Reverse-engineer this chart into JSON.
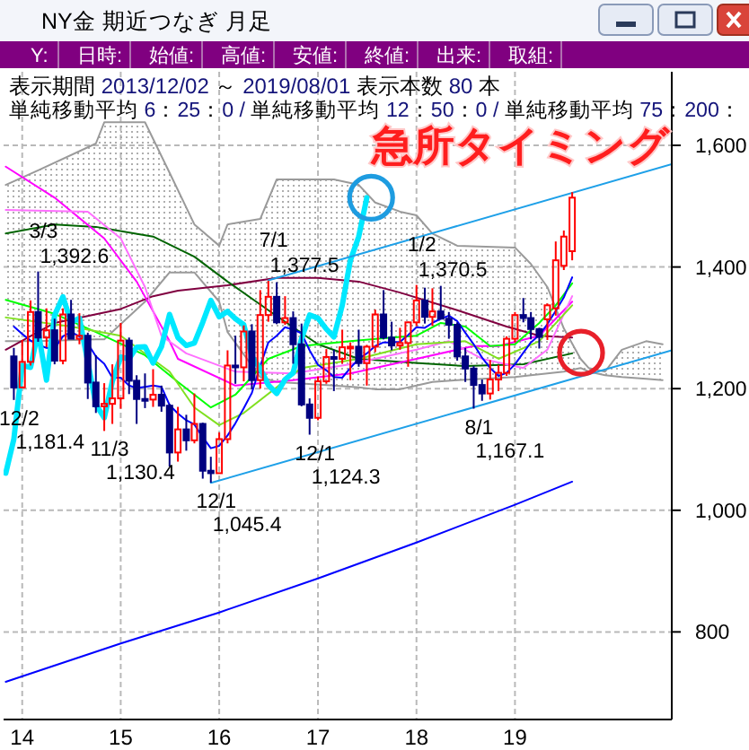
{
  "chart_data": {
    "type": "candlestick",
    "title": "NY金 期近つなぎ 月足",
    "subtitle": "表示期間 2013/12/02 ～ 2019/08/01 表示本数 80 本",
    "annotations": [
      "Y:",
      "日時:",
      "始値:",
      "高値:",
      "安値:",
      "終値:",
      "出来:",
      "取組:",
      "単純移動平均 6：25：0 / 単純移動平均 12：50：0 / 単純移動平均 75：200：",
      "急所タイミング",
      {
        "text": "12/2\n1,181.4",
        "x": "2013-12",
        "y": 1181.4
      },
      {
        "text": "3/3\n1,392.6",
        "x": "2014-03",
        "y": 1392.6
      },
      {
        "text": "11/3\n1,130.4",
        "x": "2014-11",
        "y": 1130.4
      },
      {
        "text": "12/1\n1,045.4",
        "x": "2015-12",
        "y": 1045.4
      },
      {
        "text": "7/1\n1,377.5",
        "x": "2016-07",
        "y": 1377.5
      },
      {
        "text": "12/1\n1,124.3",
        "x": "2016-12",
        "y": 1124.3
      },
      {
        "text": "1/2\n1,370.5",
        "x": "2018-01",
        "y": 1370.5
      },
      {
        "text": "8/1\n1,167.1",
        "x": "2018-08",
        "y": 1167.1
      }
    ],
    "x": [
      "2013-12",
      "2014-01",
      "2014-02",
      "2014-03",
      "2014-04",
      "2014-05",
      "2014-06",
      "2014-07",
      "2014-08",
      "2014-09",
      "2014-10",
      "2014-11",
      "2014-12",
      "2015-01",
      "2015-02",
      "2015-03",
      "2015-04",
      "2015-05",
      "2015-06",
      "2015-07",
      "2015-08",
      "2015-09",
      "2015-10",
      "2015-11",
      "2015-12",
      "2016-01",
      "2016-02",
      "2016-03",
      "2016-04",
      "2016-05",
      "2016-06",
      "2016-07",
      "2016-08",
      "2016-09",
      "2016-10",
      "2016-11",
      "2016-12",
      "2017-01",
      "2017-02",
      "2017-03",
      "2017-04",
      "2017-05",
      "2017-06",
      "2017-07",
      "2017-08",
      "2017-09",
      "2017-10",
      "2017-11",
      "2017-12",
      "2018-01",
      "2018-02",
      "2018-03",
      "2018-04",
      "2018-05",
      "2018-06",
      "2018-07",
      "2018-08",
      "2018-09",
      "2018-10",
      "2018-11",
      "2018-12",
      "2019-01",
      "2019-02",
      "2019-03",
      "2019-04",
      "2019-05",
      "2019-06",
      "2019-07",
      "2019-08"
    ],
    "ohlc": [
      [
        1253,
        1267,
        1181.4,
        1202
      ],
      [
        1202,
        1280,
        1202,
        1244
      ],
      [
        1244,
        1345,
        1238,
        1326
      ],
      [
        1326,
        1392.6,
        1277,
        1284
      ],
      [
        1284,
        1332,
        1268,
        1296
      ],
      [
        1296,
        1315,
        1240,
        1246
      ],
      [
        1246,
        1332,
        1240,
        1322
      ],
      [
        1322,
        1346,
        1282,
        1282
      ],
      [
        1282,
        1324,
        1273,
        1287
      ],
      [
        1287,
        1292,
        1183,
        1210
      ],
      [
        1210,
        1255,
        1160,
        1171
      ],
      [
        1171,
        1209,
        1130.4,
        1175
      ],
      [
        1175,
        1240,
        1142,
        1184
      ],
      [
        1184,
        1308,
        1167,
        1279
      ],
      [
        1279,
        1284,
        1191,
        1213
      ],
      [
        1213,
        1222,
        1142,
        1183
      ],
      [
        1183,
        1225,
        1168,
        1182
      ],
      [
        1182,
        1232,
        1170,
        1190
      ],
      [
        1190,
        1205,
        1162,
        1172
      ],
      [
        1172,
        1175,
        1072,
        1095
      ],
      [
        1095,
        1170,
        1080,
        1133
      ],
      [
        1133,
        1157,
        1098,
        1115
      ],
      [
        1115,
        1192,
        1110,
        1142
      ],
      [
        1142,
        1144,
        1052,
        1065
      ],
      [
        1065,
        1088,
        1045.4,
        1061
      ],
      [
        1061,
        1128,
        1061,
        1117
      ],
      [
        1117,
        1263,
        1110,
        1238
      ],
      [
        1238,
        1287,
        1208,
        1235
      ],
      [
        1235,
        1304,
        1212,
        1294
      ],
      [
        1294,
        1306,
        1199,
        1214
      ],
      [
        1214,
        1362,
        1200,
        1321
      ],
      [
        1321,
        1377.5,
        1310,
        1351
      ],
      [
        1351,
        1375,
        1306,
        1309
      ],
      [
        1309,
        1352,
        1305,
        1316
      ],
      [
        1316,
        1327,
        1241,
        1273
      ],
      [
        1273,
        1307,
        1171,
        1174
      ],
      [
        1174,
        1184,
        1124.3,
        1152
      ],
      [
        1152,
        1220,
        1148,
        1212
      ],
      [
        1212,
        1265,
        1208,
        1252
      ],
      [
        1252,
        1264,
        1196,
        1249
      ],
      [
        1249,
        1297,
        1241,
        1268
      ],
      [
        1268,
        1276,
        1214,
        1269
      ],
      [
        1269,
        1297,
        1236,
        1242
      ],
      [
        1242,
        1272,
        1205,
        1269
      ],
      [
        1269,
        1330,
        1260,
        1322
      ],
      [
        1322,
        1362,
        1281,
        1284
      ],
      [
        1284,
        1310,
        1263,
        1271
      ],
      [
        1271,
        1300,
        1264,
        1275
      ],
      [
        1275,
        1310,
        1236,
        1309
      ],
      [
        1309,
        1370.5,
        1303,
        1345
      ],
      [
        1345,
        1366,
        1307,
        1318
      ],
      [
        1318,
        1365,
        1303,
        1327
      ],
      [
        1327,
        1369,
        1314,
        1315
      ],
      [
        1315,
        1326,
        1282,
        1305
      ],
      [
        1305,
        1309,
        1246,
        1253
      ],
      [
        1253,
        1267,
        1211,
        1233
      ],
      [
        1233,
        1237,
        1167.1,
        1206
      ],
      [
        1206,
        1215,
        1180,
        1192
      ],
      [
        1192,
        1247,
        1182,
        1215
      ],
      [
        1215,
        1239,
        1196,
        1226
      ],
      [
        1226,
        1286,
        1221,
        1282
      ],
      [
        1282,
        1326,
        1276,
        1321
      ],
      [
        1321,
        1349,
        1309,
        1316
      ],
      [
        1316,
        1326,
        1281,
        1298
      ],
      [
        1298,
        1300,
        1266,
        1285
      ],
      [
        1314,
        1340,
        1280,
        1337
      ],
      [
        1332,
        1442,
        1320,
        1411
      ],
      [
        1402,
        1460,
        1395,
        1450
      ],
      [
        1426,
        1523,
        1411,
        1514
      ]
    ],
    "colors": [
      "#000080",
      "#ff0000",
      "#ff0000",
      "#000080",
      "#ff0000",
      "#000080",
      "#ff0000",
      "#000080",
      "#ff0000",
      "#000080",
      "#000080",
      "#ff0000",
      "#ff0000",
      "#ff0000",
      "#000080",
      "#000080",
      "#000080",
      "#ff0000",
      "#000080",
      "#000080",
      "#ff0000",
      "#000080",
      "#ff0000",
      "#000080",
      "#000080",
      "#ff0000",
      "#ff0000",
      "#000080",
      "#ff0000",
      "#000080",
      "#ff0000",
      "#ff0000",
      "#000080",
      "#ff0000",
      "#000080",
      "#000080",
      "#000080",
      "#ff0000",
      "#ff0000",
      "#000080",
      "#ff0000",
      "#ff0000",
      "#000080",
      "#ff0000",
      "#ff0000",
      "#000080",
      "#000080",
      "#ff0000",
      "#ff0000",
      "#ff0000",
      "#000080",
      "#ff0000",
      "#000080",
      "#000080",
      "#000080",
      "#000080",
      "#000080",
      "#000080",
      "#ff0000",
      "#ff0000",
      "#ff0000",
      "#ff0000",
      "#000080",
      "#000080",
      "#000080",
      "#ff0000",
      "#ff0000",
      "#ff0000",
      "#ff0000"
    ],
    "series": [
      {
        "type": "line",
        "color": "#9a9a9a",
        "x": [
          "2013-11",
          "2014-03",
          "2014-10",
          "2014-11",
          "2015-04",
          "2015-07",
          "2015-10",
          "2016-01",
          "2016-02",
          "2016-06",
          "2016-08",
          "2017-03",
          "2017-06",
          "2017-08",
          "2017-11",
          "2018-01",
          "2018-03",
          "2018-06",
          "2019-01",
          "2019-03",
          "2019-05",
          "2019-07",
          "2019-09",
          "2019-10",
          "2019-12",
          "2020-02",
          "2020-05",
          "2020-07"
        ],
        "values": [
          1535,
          1559,
          1603,
          1638,
          1638,
          1555,
          1470,
          1435,
          1470,
          1479,
          1544,
          1544,
          1535,
          1506,
          1491,
          1485,
          1455,
          1435,
          1432,
          1405,
          1367,
          1299,
          1249,
          1234,
          1228,
          1264,
          1278,
          1273
        ],
        "upper": [
          1535,
          1559,
          1603,
          1638,
          1638,
          1555,
          1470,
          1435,
          1470,
          1479,
          1544,
          1544,
          1535,
          1506,
          1491,
          1485,
          1455,
          1435,
          1432,
          1405,
          1367,
          1299,
          1249,
          1234,
          1228,
          1264,
          1278,
          1273
        ],
        "lower": [
          1278,
          1278,
          1281,
          1281,
          1343,
          1391,
          1391,
          1343,
          1293,
          1219,
          1211,
          1205,
          1202,
          1199,
          1199,
          1205,
          1211,
          1214,
          1219,
          1222,
          1225,
          1228,
          1234,
          1228,
          1222,
          1219,
          1216,
          1214
        ]
      },
      {
        "type": "line",
        "color": "#9a9a9a",
        "x": [
          "2013-11",
          "2014-03",
          "2014-10",
          "2014-11",
          "2015-04",
          "2015-07",
          "2015-10",
          "2016-01",
          "2016-02",
          "2016-06",
          "2016-08",
          "2017-03",
          "2017-06",
          "2017-08",
          "2017-11",
          "2018-01",
          "2018-03",
          "2018-06",
          "2019-01",
          "2019-03",
          "2019-05",
          "2019-07",
          "2019-09",
          "2019-10",
          "2019-12",
          "2020-02",
          "2020-05",
          "2020-07"
        ],
        "values": [
          1278,
          1278,
          1281,
          1281,
          1343,
          1391,
          1391,
          1343,
          1293,
          1219,
          1211,
          1205,
          1202,
          1199,
          1199,
          1205,
          1211,
          1214,
          1219,
          1222,
          1225,
          1228,
          1234,
          1228,
          1222,
          1219,
          1216,
          1214
        ]
      },
      {
        "type": "line",
        "color": "#0000ff",
        "x": [
          "2013-11",
          "2015-01",
          "2016-01",
          "2017-01",
          "2018-01",
          "2019-01",
          "2019-08"
        ],
        "values": [
          718,
          781,
          832,
          888,
          947,
          1009,
          1047
        ]
      },
      {
        "type": "line",
        "color": "#800040",
        "x": [
          "2013-11",
          "2014-05",
          "2015-01",
          "2015-05",
          "2015-08",
          "2016-02",
          "2016-08",
          "2017-01",
          "2017-06",
          "2017-11",
          "2018-06",
          "2018-12",
          "2019-04",
          "2019-08"
        ],
        "values": [
          1264,
          1308,
          1331,
          1352,
          1361,
          1370,
          1382,
          1382,
          1376,
          1358,
          1329,
          1302,
          1287,
          1284
        ]
      },
      {
        "type": "line",
        "color": "#006400",
        "x": [
          "2013-11",
          "2014-05",
          "2014-10",
          "2015-05",
          "2015-10",
          "2016-02",
          "2016-07",
          "2017-01",
          "2017-06",
          "2017-12",
          "2018-07",
          "2019-02",
          "2019-08"
        ],
        "values": [
          1455,
          1470,
          1466,
          1450,
          1417,
          1376,
          1329,
          1273,
          1249,
          1243,
          1237,
          1240,
          1258
        ]
      },
      {
        "type": "line",
        "color": "#ff00ff",
        "x": [
          "2013-11",
          "2014-05",
          "2014-11",
          "2015-03",
          "2015-07",
          "2015-08",
          "2016-03",
          "2016-10",
          "2017-05",
          "2018-01",
          "2018-08",
          "2018-11",
          "2019-04",
          "2019-08"
        ],
        "values": [
          1565,
          1514,
          1447,
          1376,
          1278,
          1249,
          1205,
          1214,
          1225,
          1249,
          1270,
          1270,
          1287,
          1343
        ]
      },
      {
        "type": "line",
        "color": "#ff70ff",
        "x": [
          "2013-11",
          "2014-09",
          "2015-01",
          "2015-04",
          "2015-06",
          "2015-09",
          "2016-03",
          "2016-10",
          "2017-05",
          "2018-01",
          "2018-05",
          "2018-09",
          "2019-02",
          "2019-05",
          "2019-08"
        ],
        "values": [
          1494,
          1491,
          1447,
          1367,
          1287,
          1258,
          1228,
          1225,
          1240,
          1264,
          1278,
          1249,
          1234,
          1264,
          1352
        ]
      },
      {
        "type": "line",
        "color": "#00ff00",
        "x": [
          "2013-11",
          "2014-05",
          "2014-10",
          "2015-04",
          "2015-08",
          "2015-12",
          "2016-03",
          "2016-07",
          "2016-11",
          "2017-05",
          "2017-10",
          "2018-01",
          "2018-04",
          "2018-07",
          "2018-10",
          "2019-01",
          "2019-04",
          "2019-06",
          "2019-08"
        ],
        "values": [
          1346,
          1323,
          1293,
          1255,
          1211,
          1169,
          1190,
          1249,
          1270,
          1278,
          1284,
          1287,
          1308,
          1302,
          1270,
          1273,
          1308,
          1337,
          1373
        ]
      },
      {
        "type": "line",
        "color": "#80e020",
        "x": [
          "2013-11",
          "2014-07",
          "2015-01",
          "2015-07",
          "2015-10",
          "2016-01",
          "2016-04",
          "2016-11",
          "2017-06",
          "2018-01",
          "2018-07",
          "2018-11",
          "2019-04",
          "2019-08"
        ],
        "values": [
          1317,
          1302,
          1287,
          1228,
          1169,
          1140,
          1160,
          1234,
          1249,
          1273,
          1278,
          1249,
          1278,
          1337
        ]
      },
      {
        "type": "line",
        "color": "#0000ff",
        "values": [
          1302,
          1290,
          1279,
          1272,
          1267,
          1266,
          1286,
          1293,
          1286,
          1274,
          1253,
          1241,
          1218,
          1218,
          1205,
          1201,
          1203,
          1205,
          1203,
          1173,
          1159,
          1148,
          1141,
          1120,
          1102,
          1106,
          1123,
          1143,
          1168,
          1193,
          1237,
          1276,
          1287,
          1301,
          1297,
          1291,
          1263,
          1239,
          1230,
          1219,
          1218,
          1234,
          1249,
          1258,
          1270,
          1276,
          1276,
          1277,
          1288,
          1301,
          1300,
          1308,
          1315,
          1320,
          1311,
          1292,
          1273,
          1251,
          1234,
          1221,
          1226,
          1240,
          1259,
          1276,
          1288,
          1306,
          1328,
          1350,
          1383
        ]
      },
      {
        "type": "line",
        "color": "#00e8ff",
        "x": [
          "2013-11",
          "2013-12",
          "2014-01",
          "2014-02",
          "2014-03",
          "2014-04",
          "2014-05",
          "2014-06",
          "2014-07",
          "2014-08",
          "2014-10",
          "2014-11",
          "2014-12",
          "2015-01",
          "2015-02",
          "2015-03",
          "2015-04",
          "2015-05",
          "2015-06",
          "2015-07",
          "2015-08",
          "2015-09",
          "2015-10",
          "2015-11",
          "2015-12",
          "2016-01",
          "2016-02",
          "2016-03",
          "2016-04",
          "2016-05",
          "2016-06",
          "2016-07",
          "2016-08",
          "2016-09",
          "2016-10",
          "2016-11",
          "2016-12",
          "2017-01",
          "2017-02",
          "2017-03",
          "2017-04",
          "2017-05",
          "2017-06",
          "2017-07"
        ],
        "values": [
          1061,
          1117,
          1238,
          1235,
          1294,
          1214,
          1321,
          1351,
          1309,
          1316,
          1174,
          1152,
          1212,
          1252,
          1249,
          1268,
          1269,
          1242,
          1269,
          1322,
          1284,
          1271,
          1275,
          1309,
          1345,
          1318,
          1327,
          1315,
          1305,
          1253,
          1233,
          1206,
          1192,
          1215,
          1226,
          1282,
          1321,
          1316,
          1298,
          1285,
          1337,
          1411,
          1450,
          1514
        ]
      },
      {
        "type": "line",
        "color": "#1ea0e8",
        "x": [
          "2016-07",
          "2020-08-04"
        ],
        "values": [
          1378,
          1569
        ]
      },
      {
        "type": "line",
        "color": "#1ea0e8",
        "x": [
          "2015-12",
          "2020-08-04"
        ],
        "values": [
          1045,
          1263
        ]
      },
      {
        "type": "scatter",
        "color": "#1e9ce0",
        "marker": "circle",
        "x": [
          "2017-07-17"
        ],
        "values": [
          1514
        ]
      },
      {
        "type": "scatter",
        "color": "#e8202a",
        "marker": "circle",
        "x": [
          "2019-09-03"
        ],
        "values": [
          1259
        ]
      }
    ],
    "xlim": [
      "2013-10-24",
      "2020-08-04"
    ],
    "xticks": [
      {
        "value": "2014-01",
        "label": "14"
      },
      {
        "value": "2015-01",
        "label": "15"
      },
      {
        "value": "2016-01",
        "label": "16"
      },
      {
        "value": "2017-01",
        "label": "17"
      },
      {
        "value": "2018-01",
        "label": "18"
      },
      {
        "value": "2019-01",
        "label": "19"
      }
    ],
    "ylim": [
      656,
      1721
    ],
    "yticks": [
      800,
      {
        "value": 1000,
        "label": "1,000"
      },
      {
        "value": 1200,
        "label": "1,200"
      },
      {
        "value": 1400,
        "label": "1,400"
      },
      {
        "value": 1600,
        "label": "1,600"
      }
    ],
    "grid": true
  }
}
